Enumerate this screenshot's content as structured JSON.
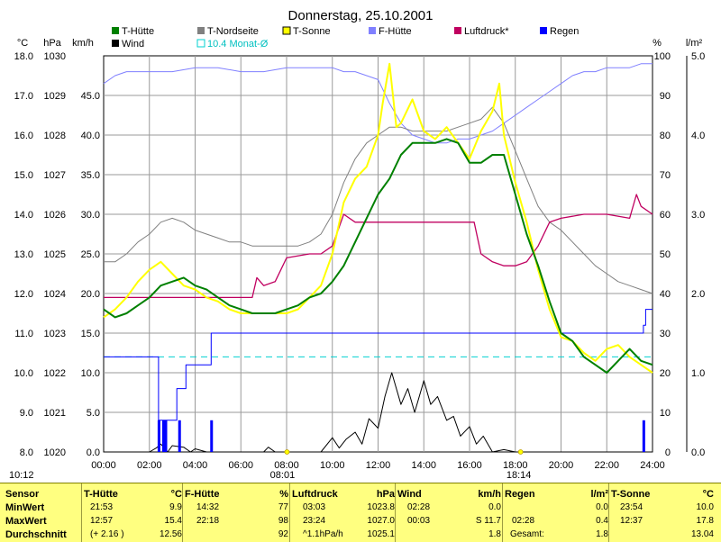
{
  "chart_data": {
    "type": "line",
    "title": "Donnerstag, 25.10.2001",
    "x_ticks": [
      "00:00",
      "02:00",
      "04:00",
      "06:00",
      "08:00",
      "10:00",
      "12:00",
      "14:00",
      "16:00",
      "18:00",
      "20:00",
      "22:00",
      "24:00"
    ],
    "xlim": [
      0,
      24
    ],
    "axes": {
      "temp": {
        "unit": "°C",
        "range": [
          8.0,
          18.0
        ],
        "ticks": [
          "8.0",
          "9.0",
          "10.0",
          "11.0",
          "12.0",
          "13.0",
          "14.0",
          "15.0",
          "16.0",
          "17.0",
          "18.0"
        ]
      },
      "pressure": {
        "unit": "hPa",
        "range": [
          1020,
          1030
        ],
        "ticks": [
          "1020",
          "1021",
          "1022",
          "1023",
          "1024",
          "1025",
          "1026",
          "1027",
          "1028",
          "1029",
          "1030"
        ]
      },
      "wind": {
        "unit": "km/h",
        "range": [
          0,
          50
        ],
        "ticks": [
          "0.0",
          "5.0",
          "10.0",
          "15.0",
          "20.0",
          "25.0",
          "30.0",
          "35.0",
          "40.0",
          "45.0"
        ]
      },
      "humidity": {
        "unit": "%",
        "range": [
          0,
          100
        ],
        "ticks": [
          "0",
          "10",
          "20",
          "30",
          "40",
          "50",
          "60",
          "70",
          "80",
          "90",
          "100"
        ]
      },
      "rain": {
        "unit": "l/m²",
        "range": [
          0,
          5
        ],
        "ticks": [
          "0.0",
          "1.0",
          "2.0",
          "3.0",
          "4.0",
          "5.0"
        ]
      }
    },
    "legend": [
      {
        "name": "T-Hütte",
        "color": "#008000"
      },
      {
        "name": "Wind",
        "color": "#000000"
      },
      {
        "name": "T-Nordseite",
        "color": "#808080"
      },
      {
        "name": "10.4 Monat-Ø",
        "color": "#00d0d0"
      },
      {
        "name": "T-Sonne",
        "color": "#ffff00"
      },
      {
        "name": "F-Hütte",
        "color": "#8080ff"
      },
      {
        "name": "Luftdruck*",
        "color": "#c00060"
      },
      {
        "name": "Regen",
        "color": "#0000ff"
      }
    ],
    "monthly_avg_temp": 10.4,
    "sunrise": "08:01",
    "sunset": "18:14",
    "last_update": "10:12",
    "series": [
      {
        "name": "T-Hütte",
        "axis": "temp",
        "color": "#008000",
        "x": [
          0,
          0.5,
          1,
          1.5,
          2,
          2.5,
          3,
          3.5,
          4,
          4.5,
          5,
          5.5,
          6,
          6.5,
          7,
          7.5,
          8,
          8.5,
          9,
          9.5,
          10,
          10.5,
          11,
          11.5,
          12,
          12.5,
          13,
          13.5,
          14,
          14.5,
          15,
          15.5,
          16,
          16.5,
          17,
          17.5,
          18,
          18.5,
          19,
          19.5,
          20,
          20.5,
          21,
          21.5,
          22,
          22.5,
          23,
          23.5,
          24
        ],
        "y": [
          11.6,
          11.4,
          11.5,
          11.7,
          11.9,
          12.2,
          12.3,
          12.4,
          12.2,
          12.1,
          11.9,
          11.7,
          11.6,
          11.5,
          11.5,
          11.5,
          11.6,
          11.7,
          11.9,
          12.0,
          12.3,
          12.7,
          13.3,
          13.9,
          14.5,
          14.9,
          15.5,
          15.8,
          15.8,
          15.8,
          15.9,
          15.8,
          15.3,
          15.3,
          15.5,
          15.5,
          14.5,
          13.5,
          12.7,
          11.8,
          11.0,
          10.8,
          10.4,
          10.2,
          10.0,
          10.3,
          10.6,
          10.3,
          10.2
        ]
      },
      {
        "name": "T-Nordseite",
        "axis": "temp",
        "color": "#808080",
        "x": [
          0,
          0.5,
          1,
          1.5,
          2,
          2.5,
          3,
          3.5,
          4,
          4.5,
          5,
          5.5,
          6,
          6.5,
          7,
          7.5,
          8,
          8.5,
          9,
          9.5,
          10,
          10.5,
          11,
          11.5,
          12,
          12.5,
          13,
          13.5,
          14,
          14.5,
          15,
          15.5,
          16,
          16.5,
          17,
          17.5,
          18,
          18.5,
          19,
          19.5,
          20,
          20.5,
          21,
          21.5,
          22,
          22.5,
          23,
          23.5,
          24
        ],
        "y": [
          12.8,
          12.8,
          13.0,
          13.3,
          13.5,
          13.8,
          13.9,
          13.8,
          13.6,
          13.5,
          13.4,
          13.3,
          13.3,
          13.2,
          13.2,
          13.2,
          13.2,
          13.2,
          13.3,
          13.5,
          14.0,
          14.8,
          15.4,
          15.8,
          16.0,
          16.2,
          16.2,
          16.1,
          16.1,
          16.1,
          16.1,
          16.2,
          16.3,
          16.4,
          16.7,
          16.3,
          15.6,
          14.9,
          14.2,
          13.8,
          13.6,
          13.3,
          13.0,
          12.7,
          12.5,
          12.3,
          12.2,
          12.1,
          12.0
        ]
      },
      {
        "name": "T-Sonne",
        "axis": "temp",
        "color": "#ffff00",
        "x": [
          0,
          0.5,
          1,
          1.5,
          2,
          2.5,
          3,
          3.5,
          4,
          4.5,
          5,
          5.5,
          6,
          6.5,
          7,
          7.5,
          8,
          8.5,
          9,
          9.5,
          10,
          10.5,
          11,
          11.5,
          12,
          12.2,
          12.5,
          12.8,
          13,
          13.5,
          14,
          14.5,
          15,
          15.5,
          16,
          16.5,
          17,
          17.3,
          17.5,
          18,
          18.5,
          19,
          19.5,
          20,
          20.5,
          21,
          21.5,
          22,
          22.5,
          23,
          23.5,
          24
        ],
        "y": [
          11.4,
          11.6,
          11.9,
          12.3,
          12.6,
          12.8,
          12.5,
          12.2,
          12.1,
          11.9,
          11.8,
          11.6,
          11.5,
          11.5,
          11.5,
          11.5,
          11.5,
          11.6,
          11.9,
          12.2,
          13.0,
          14.3,
          14.9,
          15.2,
          16.0,
          16.8,
          17.8,
          16.2,
          16.3,
          16.9,
          16.1,
          15.9,
          16.2,
          15.8,
          15.4,
          16.1,
          16.6,
          17.3,
          16.0,
          14.8,
          13.8,
          12.6,
          11.6,
          10.9,
          10.8,
          10.5,
          10.3,
          10.6,
          10.7,
          10.4,
          10.2,
          10.0
        ]
      },
      {
        "name": "F-Hütte",
        "axis": "humidity",
        "color": "#8080ff",
        "x": [
          0,
          0.5,
          1,
          2,
          3,
          4,
          5,
          6,
          7,
          8,
          8.5,
          9,
          9.5,
          10,
          10.5,
          11,
          11.5,
          12,
          12.5,
          13,
          13.5,
          14,
          14.5,
          15,
          15.5,
          16,
          16.5,
          17,
          17.5,
          18,
          18.5,
          19,
          19.5,
          20,
          20.5,
          21,
          21.5,
          22,
          22.5,
          23,
          23.5,
          24
        ],
        "y": [
          93,
          95,
          96,
          96,
          96,
          97,
          97,
          96,
          96,
          97,
          97,
          97,
          97,
          97,
          96,
          96,
          95,
          94,
          88,
          83,
          80,
          79,
          78,
          78,
          79,
          79,
          80,
          81,
          83,
          85,
          87,
          89,
          91,
          93,
          95,
          96,
          96,
          97,
          97,
          97,
          98,
          98
        ]
      },
      {
        "name": "Luftdruck*",
        "axis": "pressure",
        "color": "#c00060",
        "x": [
          0,
          1,
          2,
          3,
          4,
          5,
          6,
          6.5,
          6.7,
          7,
          7.5,
          8,
          9,
          9.5,
          10,
          10.5,
          11,
          12,
          13,
          14,
          15,
          16,
          16.2,
          16.5,
          17,
          17.5,
          18,
          18.5,
          19,
          19.5,
          20,
          21,
          22,
          23,
          23.3,
          23.5,
          24
        ],
        "y": [
          1023.9,
          1023.9,
          1023.9,
          1023.9,
          1023.9,
          1023.9,
          1023.9,
          1023.9,
          1024.4,
          1024.2,
          1024.3,
          1024.9,
          1025.0,
          1025.0,
          1025.2,
          1026.0,
          1025.8,
          1025.8,
          1025.8,
          1025.8,
          1025.8,
          1025.8,
          1025.8,
          1025.0,
          1024.8,
          1024.7,
          1024.7,
          1024.8,
          1025.2,
          1025.8,
          1025.9,
          1026.0,
          1026.0,
          1025.9,
          1026.5,
          1026.2,
          1026.0
        ]
      },
      {
        "name": "Wind",
        "axis": "wind",
        "color": "#000000",
        "x": [
          0,
          2,
          2.3,
          2.5,
          2.8,
          3,
          3.5,
          3.8,
          4,
          4.5,
          5,
          6,
          7,
          7.2,
          7.5,
          8,
          9,
          9.5,
          10,
          10.3,
          10.6,
          11,
          11.3,
          11.6,
          12,
          12.3,
          12.6,
          13,
          13.3,
          13.6,
          14,
          14.3,
          14.6,
          15,
          15.3,
          15.6,
          16,
          16.3,
          16.6,
          17,
          17.5,
          18,
          24
        ],
        "y": [
          0,
          0,
          0.5,
          1,
          0,
          0.8,
          0.6,
          0,
          0.4,
          0,
          0,
          0,
          0,
          0.6,
          0,
          0,
          0,
          0,
          1.8,
          0.5,
          1.6,
          2.5,
          1,
          4.2,
          3,
          7,
          10,
          6,
          8,
          5,
          9,
          6,
          7,
          4,
          4.5,
          2,
          3.2,
          1,
          2,
          0,
          0.3,
          0,
          0
        ]
      },
      {
        "name": "Regen",
        "axis": "rain",
        "type": "bar",
        "color": "#0000ff",
        "x": [
          2.4,
          2.6,
          2.7,
          3.3,
          4.7,
          23.6
        ],
        "y": [
          0.4,
          0.4,
          0.4,
          0.4,
          0.4,
          0.4
        ]
      },
      {
        "name": "Regen-Summe",
        "axis": "rain",
        "color": "#0000ff",
        "x": [
          0,
          2.3,
          2.4,
          2.8,
          3.2,
          3.4,
          3.6,
          4.5,
          4.7,
          4.8,
          23.6,
          23.7,
          24
        ],
        "y": [
          1.2,
          1.2,
          0.4,
          0.4,
          0.8,
          0.8,
          1.1,
          1.1,
          1.5,
          1.5,
          1.6,
          1.8,
          1.8
        ]
      }
    ]
  },
  "stats": {
    "header_row": [
      "Sensor",
      "MinWert",
      "MaxWert",
      "Durchschnitt"
    ],
    "t_huette": {
      "title": "T-Hütte",
      "unit": "°C",
      "min_time": "21:53",
      "min": "9.9",
      "max_time": "12:57",
      "max": "15.4",
      "avg_extra": "(+ 2.16 )",
      "avg": "12.56"
    },
    "f_huette": {
      "title": "F-Hütte",
      "unit": "%",
      "min_time": "14:32",
      "min": "77",
      "max_time": "22:18",
      "max": "98",
      "avg_extra": "",
      "avg": "92"
    },
    "luftdruck": {
      "title": "Luftdruck",
      "unit": "hPa",
      "min_time": "03:03",
      "min": "1023.8",
      "max_time": "23:24",
      "max": "1027.0",
      "avg_extra": "^1.1hPa/h",
      "avg": "1025.1"
    },
    "wind": {
      "title": "Wind",
      "unit": "km/h",
      "min_time": "02:28",
      "min": "0.0",
      "max_time": "00:03",
      "max": "S 11.7",
      "avg_extra": "",
      "avg": "1.8"
    },
    "regen": {
      "title": "Regen",
      "unit": "l/m²",
      "min_time": "",
      "min": "0.0",
      "max_time": "02:28",
      "max": "0.4",
      "avg_extra": "Gesamt:",
      "avg": "1.8"
    },
    "t_sonne": {
      "title": "T-Sonne",
      "unit": "°C",
      "min_time": "23:54",
      "min": "10.0",
      "max_time": "12:37",
      "max": "17.8",
      "avg_extra": "",
      "avg": "13.04"
    }
  }
}
